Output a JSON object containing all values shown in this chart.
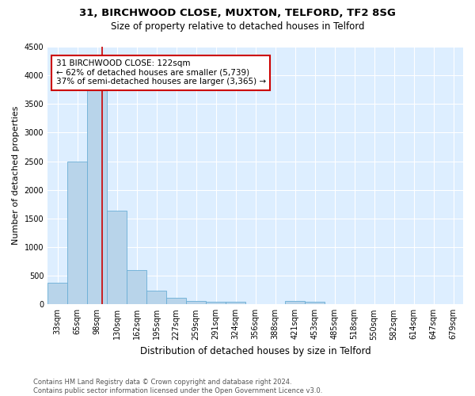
{
  "title1": "31, BIRCHWOOD CLOSE, MUXTON, TELFORD, TF2 8SG",
  "title2": "Size of property relative to detached houses in Telford",
  "xlabel": "Distribution of detached houses by size in Telford",
  "ylabel": "Number of detached properties",
  "bar_labels": [
    "33sqm",
    "65sqm",
    "98sqm",
    "130sqm",
    "162sqm",
    "195sqm",
    "227sqm",
    "259sqm",
    "291sqm",
    "324sqm",
    "356sqm",
    "388sqm",
    "421sqm",
    "453sqm",
    "485sqm",
    "518sqm",
    "550sqm",
    "582sqm",
    "614sqm",
    "647sqm",
    "679sqm"
  ],
  "bar_values": [
    380,
    2500,
    3750,
    1640,
    600,
    240,
    110,
    60,
    40,
    40,
    0,
    0,
    60,
    40,
    0,
    0,
    0,
    0,
    0,
    0,
    0
  ],
  "bar_color": "#b8d4ea",
  "bar_edge_color": "#6aaed6",
  "background_color": "#ddeeff",
  "grid_color": "#ffffff",
  "vline_color": "#cc0000",
  "annotation_text": "31 BIRCHWOOD CLOSE: 122sqm\n← 62% of detached houses are smaller (5,739)\n37% of semi-detached houses are larger (3,365) →",
  "annotation_box_color": "#ffffff",
  "annotation_box_edge": "#cc0000",
  "ylim": [
    0,
    4500
  ],
  "yticks": [
    0,
    500,
    1000,
    1500,
    2000,
    2500,
    3000,
    3500,
    4000,
    4500
  ],
  "footer_text": "Contains HM Land Registry data © Crown copyright and database right 2024.\nContains public sector information licensed under the Open Government Licence v3.0.",
  "fig_bg": "#ffffff",
  "title1_fontsize": 9.5,
  "title2_fontsize": 8.5,
  "xlabel_fontsize": 8.5,
  "ylabel_fontsize": 8,
  "tick_fontsize": 7,
  "footer_fontsize": 6,
  "annot_fontsize": 7.5
}
